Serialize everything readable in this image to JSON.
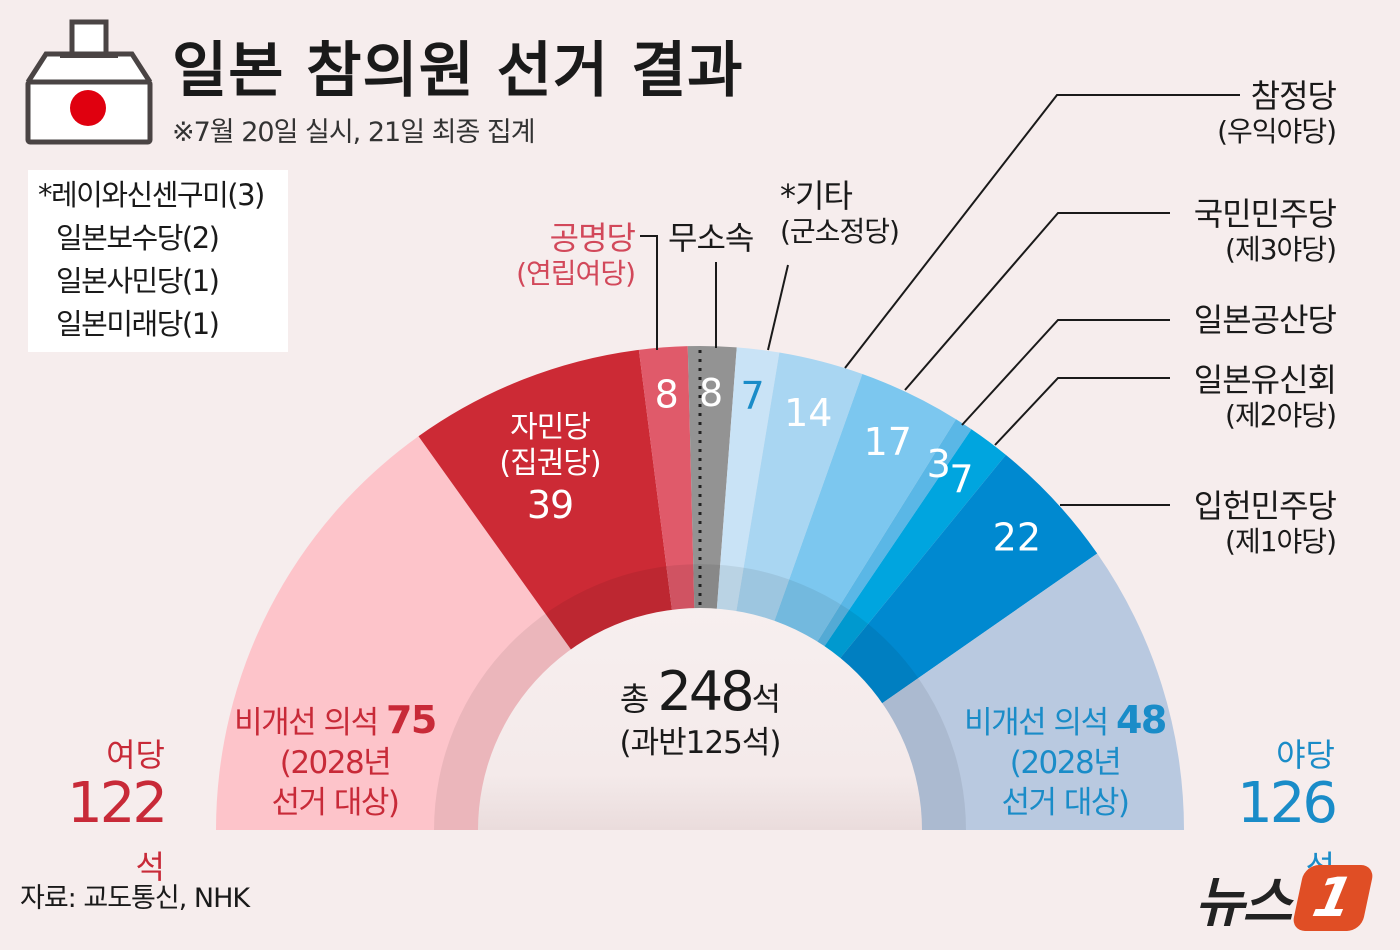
{
  "header": {
    "title": "일본 참의원 선거 결과",
    "subtitle": "※7월 20일 실시, 21일 최종 집계",
    "icon": "ballot-box-japan-flag-icon"
  },
  "others_box": {
    "items": [
      "*레이와신센구미(3)",
      "일본보수당(2)",
      "일본사민당(1)",
      "일본미래당(1)"
    ]
  },
  "chart_data": {
    "type": "pie",
    "shape": "semicircle-donut",
    "total_label": "총",
    "total": "248",
    "total_unit": "석",
    "majority": "(과반125석)",
    "segments": [
      {
        "key": "ruling_unelected",
        "value": 75,
        "color": "#fdc4ca",
        "label_color": "#c82a38"
      },
      {
        "key": "ldp",
        "name": "자민당",
        "sub": "(집권당)",
        "value": 39,
        "color": "#cc2a35",
        "label_color": "#ffffff"
      },
      {
        "key": "komeito",
        "name": "공명당",
        "sub": "(연립여당)",
        "value": 8,
        "color": "#e05a6a",
        "label_color": "#ffffff"
      },
      {
        "key": "independent",
        "name": "무소속",
        "value": 8,
        "color": "#939393",
        "label_color": "#ffffff"
      },
      {
        "key": "other",
        "name": "*기타",
        "sub": "(군소정당)",
        "value": 7,
        "color": "#c9e3f6",
        "label_color": "#1a8cc8"
      },
      {
        "key": "sanseito",
        "name": "참정당",
        "sub": "(우익야당)",
        "value": 14,
        "color": "#a9d6f2",
        "label_color": "#ffffff"
      },
      {
        "key": "dpfp",
        "name": "국민민주당",
        "sub": "(제3야당)",
        "value": 17,
        "color": "#7cc7ef",
        "label_color": "#ffffff"
      },
      {
        "key": "jcp",
        "name": "일본공산당",
        "value": 3,
        "color": "#5ab7e6",
        "label_color": "#ffffff"
      },
      {
        "key": "ishin",
        "name": "일본유신회",
        "sub": "(제2야당)",
        "value": 7,
        "color": "#00a5df",
        "label_color": "#ffffff"
      },
      {
        "key": "cdp",
        "name": "입헌민주당",
        "sub": "(제1야당)",
        "value": 22,
        "color": "#0089d0",
        "label_color": "#ffffff"
      },
      {
        "key": "opposition_unelected",
        "value": 48,
        "color": "#b9c9e0",
        "label_color": "#1a8cc8"
      }
    ],
    "unelected_left": {
      "label": "비개선 의석",
      "value": "75",
      "note1": "(2028년",
      "note2": "선거 대상)"
    },
    "unelected_right": {
      "label": "비개선 의석",
      "value": "48",
      "note1": "(2028년",
      "note2": "선거 대상)"
    },
    "blocs": {
      "ruling": {
        "name": "여당",
        "seats": "122",
        "unit": "석",
        "color": "#c82a38"
      },
      "opposition": {
        "name": "야당",
        "seats": "126",
        "unit": "석",
        "color": "#1a8cc8"
      }
    }
  },
  "footer": {
    "source": "자료: 교도통신, NHK",
    "logo_text": "뉴스",
    "logo_mark": "1",
    "logo_color": "#e04e25"
  }
}
